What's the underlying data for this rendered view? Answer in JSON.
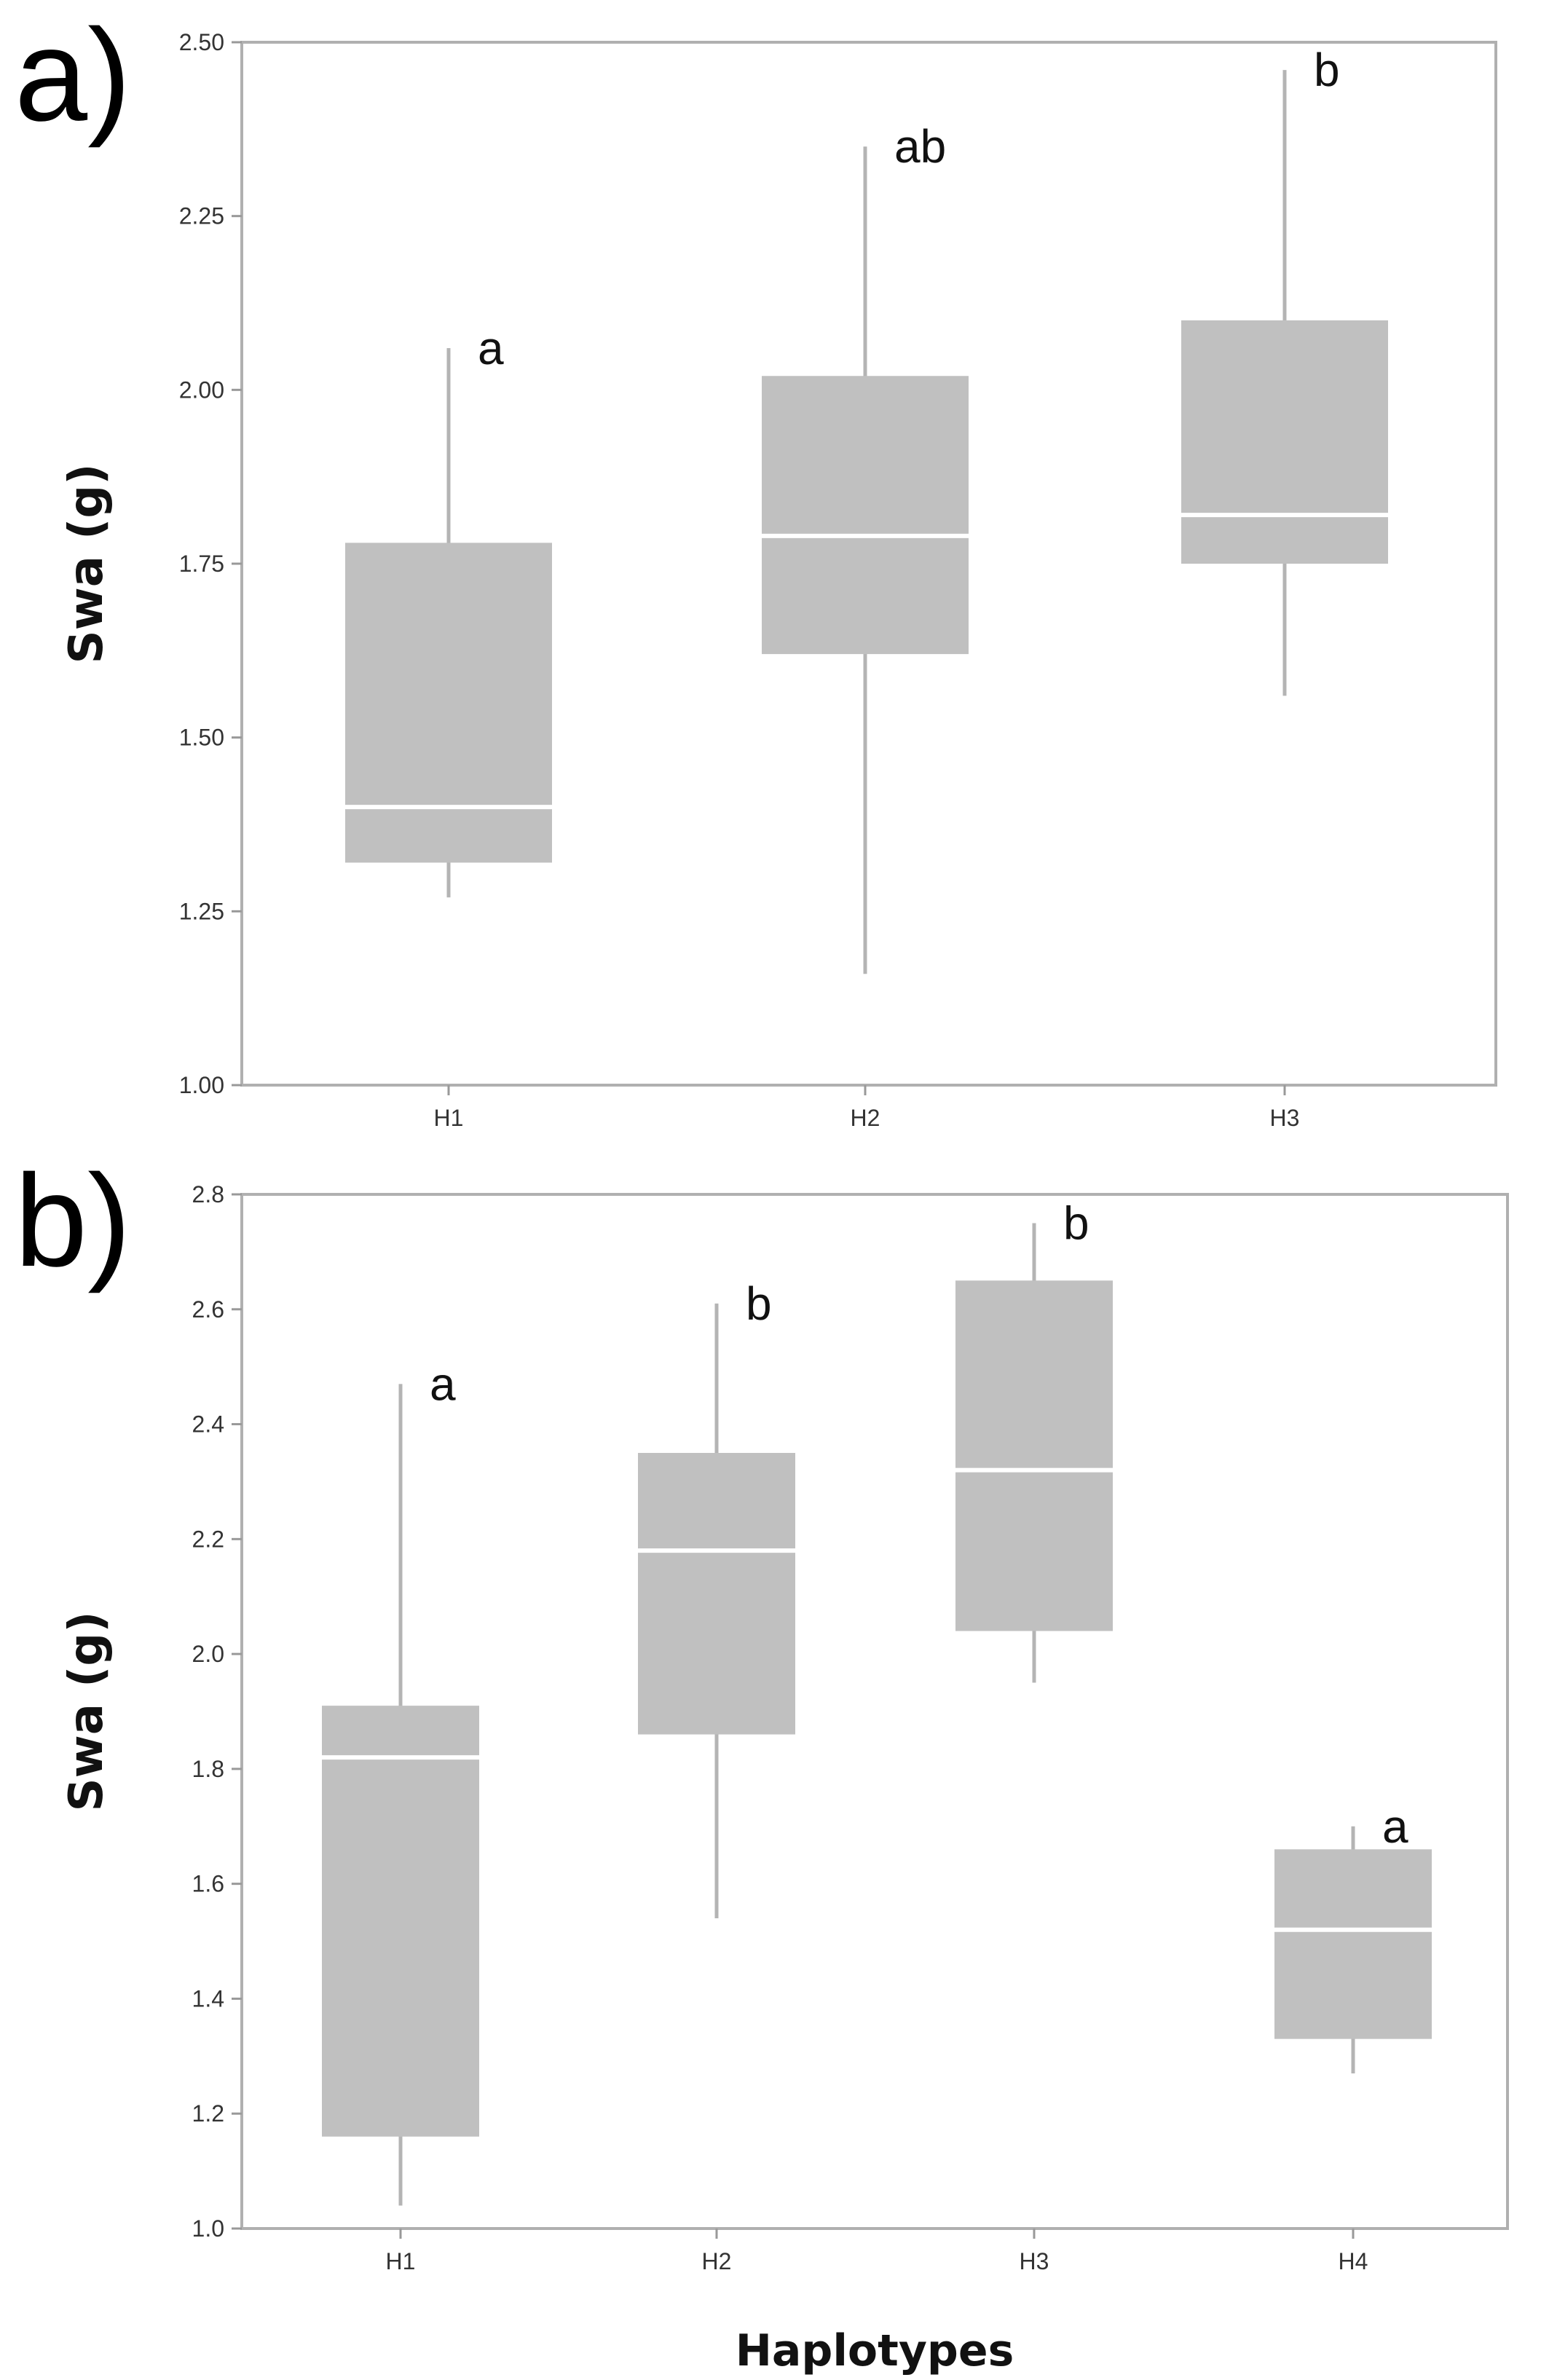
{
  "chart_data": [
    {
      "type": "box",
      "panel_label": "a)",
      "ylabel": "Swa (g)",
      "xlabel": "",
      "ylim": [
        1.0,
        2.5
      ],
      "yticks": [
        1.0,
        1.25,
        1.5,
        1.75,
        2.0,
        2.25,
        2.5
      ],
      "ytick_labels": [
        "1.00",
        "1.25",
        "1.50",
        "1.75",
        "2.00",
        "2.25",
        "2.50"
      ],
      "categories": [
        "H1",
        "H2",
        "H3"
      ],
      "boxes": [
        {
          "min": 1.27,
          "q1": 1.32,
          "median": 1.4,
          "q3": 1.78,
          "max": 2.06,
          "group": "a"
        },
        {
          "min": 1.16,
          "q1": 1.62,
          "median": 1.79,
          "q3": 2.02,
          "max": 2.35,
          "group": "ab"
        },
        {
          "min": 1.56,
          "q1": 1.75,
          "median": 1.82,
          "q3": 2.1,
          "max": 2.46,
          "group": "b"
        }
      ]
    },
    {
      "type": "box",
      "panel_label": "b)",
      "ylabel": "Swa (g)",
      "xlabel": "Haplotypes",
      "ylim": [
        1.0,
        2.8
      ],
      "yticks": [
        1.0,
        1.2,
        1.4,
        1.6,
        1.8,
        2.0,
        2.2,
        2.4,
        2.6,
        2.8
      ],
      "ytick_labels": [
        "1.0",
        "1.2",
        "1.4",
        "1.6",
        "1.8",
        "2.0",
        "2.2",
        "2.4",
        "2.6",
        "2.8"
      ],
      "categories": [
        "H1",
        "H2",
        "H3",
        "H4"
      ],
      "boxes": [
        {
          "min": 1.04,
          "q1": 1.16,
          "median": 1.82,
          "q3": 1.91,
          "max": 2.47,
          "group": "a"
        },
        {
          "min": 1.54,
          "q1": 1.86,
          "median": 2.18,
          "q3": 2.35,
          "max": 2.61,
          "group": "b"
        },
        {
          "min": 1.95,
          "q1": 2.04,
          "median": 2.32,
          "q3": 2.65,
          "max": 2.75,
          "group": "b"
        },
        {
          "min": 1.27,
          "q1": 1.33,
          "median": 1.52,
          "q3": 1.66,
          "max": 1.7,
          "group": "a"
        }
      ]
    }
  ]
}
